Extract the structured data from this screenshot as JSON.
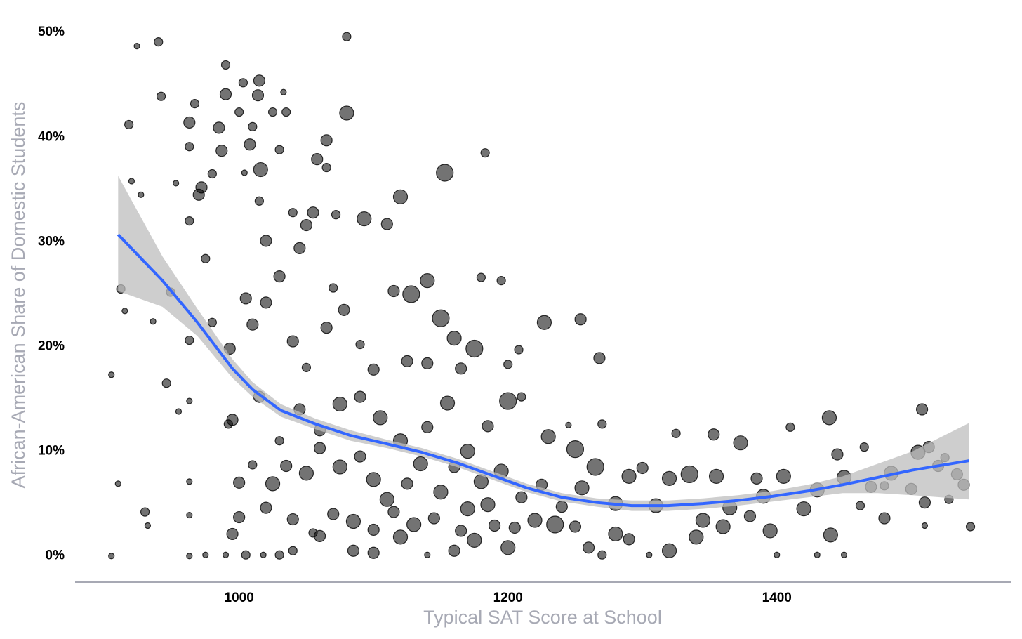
{
  "chart_data": {
    "type": "scatter",
    "x_label": "Typical SAT Score at School",
    "y_label": "African-American Share of Domestic Students",
    "xlim": [
      878,
      1574
    ],
    "ylim": [
      -2.5,
      53.1
    ],
    "xticks": [
      1000,
      1200,
      1400
    ],
    "yticks": [
      {
        "value": 0,
        "label": "0%"
      },
      {
        "value": 10,
        "label": "10%"
      },
      {
        "value": 20,
        "label": "20%"
      },
      {
        "value": 30,
        "label": "30%"
      },
      {
        "value": 40,
        "label": "40%"
      },
      {
        "value": 50,
        "label": "50%"
      }
    ],
    "grid": false,
    "color": "#000000",
    "x": [
      905,
      910,
      905,
      912,
      915,
      918,
      920,
      924,
      927,
      930,
      932,
      936,
      940,
      942,
      946,
      949,
      953,
      955,
      963,
      963,
      963,
      963,
      963,
      963,
      963,
      963,
      967,
      970,
      972,
      975,
      980,
      980,
      985,
      987,
      990,
      990,
      992,
      995,
      993,
      995,
      1000,
      1003,
      1004,
      1008,
      1010,
      1015,
      1014,
      1016,
      1015,
      1020,
      1025,
      1030,
      1033,
      1035,
      1040,
      1045,
      1050,
      1055,
      1058,
      1065,
      1065,
      1072,
      1080,
      1080,
      1093,
      1110,
      1120,
      1153,
      1183,
      1180,
      1195,
      1227,
      1254,
      1268,
      1208,
      1140,
      1128,
      1150,
      1115,
      1070,
      1065,
      1078,
      1030,
      1020,
      1005,
      1010,
      1040,
      1090,
      1100,
      1125,
      1160,
      1175,
      1200,
      1165,
      1200,
      1210,
      1230,
      1250,
      1270,
      1245,
      1265,
      1290,
      1300,
      1320,
      1335,
      1325,
      1353,
      1373,
      1385,
      1390,
      1410,
      1405,
      1420,
      1439,
      1445,
      1450,
      1465,
      1470,
      1485,
      1500,
      1508,
      1505,
      1513,
      1520,
      1525,
      1534,
      1539,
      1544,
      1510,
      1528,
      1510,
      1480,
      1462,
      1450,
      1430,
      1440,
      1400,
      1395,
      1360,
      1340,
      1320,
      1305,
      1290,
      1270,
      1260,
      1235,
      1220,
      1200,
      1190,
      1175,
      1160,
      1140,
      1120,
      1100,
      1085,
      1060,
      1040,
      1030,
      1018,
      1005,
      990,
      975,
      1000,
      1025,
      1035,
      1050,
      1060,
      1075,
      1090,
      1100,
      1110,
      1125,
      1135,
      1150,
      1160,
      1170,
      1180,
      1195,
      1210,
      1225,
      1240,
      1255,
      1280,
      1310,
      1345,
      1365,
      1045,
      1060,
      1075,
      1090,
      1105,
      1120,
      1140,
      1155,
      1170,
      1185,
      1030,
      1015,
      1010,
      1000,
      1020,
      1040,
      1055,
      1070,
      1085,
      1100,
      1115,
      1130,
      1145,
      1165,
      1185,
      1205,
      1250,
      1280,
      1355,
      1380,
      1430,
      1480,
      1140,
      1050
    ],
    "values": [
      17.3,
      6.9,
      0,
      25.5,
      23.4,
      41.2,
      35.8,
      48.7,
      34.5,
      4.2,
      2.9,
      22.4,
      49.1,
      43.9,
      16.5,
      25.2,
      35.6,
      13.8,
      41.4,
      39.1,
      32.0,
      20.6,
      14.8,
      7.1,
      3.9,
      0,
      43.2,
      34.5,
      35.2,
      28.4,
      36.5,
      22.3,
      40.9,
      38.7,
      46.9,
      44.1,
      12.6,
      13.0,
      19.8,
      2.1,
      42.4,
      45.2,
      36.6,
      39.3,
      41.0,
      45.4,
      44.0,
      36.9,
      33.9,
      30.1,
      42.4,
      38.8,
      44.3,
      42.4,
      32.8,
      29.4,
      31.6,
      32.8,
      37.9,
      39.7,
      37.1,
      32.6,
      42.3,
      49.6,
      32.2,
      31.7,
      34.3,
      36.6,
      38.5,
      26.6,
      26.3,
      22.3,
      22.6,
      18.9,
      19.7,
      26.3,
      25.0,
      22.7,
      25.3,
      25.6,
      21.8,
      23.5,
      26.7,
      24.2,
      24.6,
      22.1,
      20.5,
      20.2,
      17.8,
      18.6,
      20.8,
      19.8,
      18.3,
      17.9,
      14.8,
      15.2,
      11.4,
      10.2,
      12.6,
      12.5,
      8.5,
      7.6,
      8.4,
      7.4,
      7.8,
      11.7,
      11.6,
      10.8,
      7.4,
      5.7,
      12.3,
      7.6,
      4.5,
      13.2,
      9.7,
      7.5,
      10.4,
      6.6,
      7.9,
      6.4,
      14.0,
      9.9,
      10.4,
      8.6,
      9.4,
      7.8,
      6.8,
      2.8,
      5.1,
      5.4,
      2.9,
      3.6,
      4.8,
      0.1,
      0.1,
      2.0,
      0.1,
      2.4,
      2.8,
      1.8,
      0.5,
      0.1,
      1.6,
      0.1,
      0.8,
      3.0,
      3.4,
      0.8,
      2.9,
      1.5,
      0.5,
      0.1,
      1.8,
      0.3,
      0.5,
      1.9,
      0.5,
      0.1,
      0.1,
      0.1,
      0.1,
      0.1,
      7.0,
      6.9,
      8.6,
      7.9,
      10.3,
      8.5,
      9.5,
      7.3,
      5.4,
      6.9,
      8.8,
      6.1,
      8.5,
      4.5,
      7.1,
      8.1,
      5.6,
      6.8,
      4.7,
      6.5,
      5.0,
      4.8,
      3.4,
      4.6,
      14.0,
      12.0,
      14.5,
      15.2,
      13.2,
      11.0,
      12.3,
      14.6,
      10.0,
      12.4,
      11.0,
      15.2,
      8.7,
      3.7,
      4.6,
      3.5,
      2.2,
      4.0,
      3.3,
      2.5,
      4.2,
      3.0,
      3.6,
      2.4,
      4.9,
      2.7,
      2.8,
      2.1,
      7.6,
      3.8,
      6.3,
      6.7,
      18.4,
      18.0
    ],
    "sizes": [
      1,
      1,
      1,
      2,
      1,
      2,
      1,
      1,
      1,
      2,
      1,
      1,
      2,
      2,
      2,
      2,
      1,
      1,
      3,
      2,
      2,
      2,
      1,
      1,
      1,
      1,
      2,
      3,
      3,
      2,
      2,
      2,
      3,
      3,
      2,
      3,
      2,
      3,
      3,
      3,
      2,
      2,
      1,
      3,
      2,
      3,
      3,
      4,
      2,
      3,
      2,
      2,
      1,
      2,
      2,
      3,
      3,
      3,
      3,
      3,
      2,
      2,
      4,
      2,
      4,
      3,
      4,
      5,
      2,
      2,
      2,
      4,
      3,
      3,
      2,
      4,
      5,
      5,
      3,
      2,
      3,
      3,
      3,
      3,
      3,
      3,
      3,
      2,
      3,
      3,
      4,
      5,
      2,
      3,
      5,
      2,
      4,
      5,
      2,
      1,
      5,
      4,
      3,
      4,
      5,
      2,
      3,
      4,
      3,
      4,
      2,
      4,
      4,
      4,
      3,
      4,
      2,
      3,
      4,
      3,
      3,
      4,
      3,
      3,
      2,
      3,
      3,
      2,
      3,
      2,
      1,
      3,
      2,
      1,
      1,
      4,
      1,
      4,
      4,
      4,
      4,
      1,
      3,
      2,
      3,
      5,
      4,
      4,
      3,
      4,
      3,
      1,
      4,
      3,
      3,
      3,
      2,
      2,
      1,
      2,
      1,
      1,
      3,
      4,
      3,
      4,
      3,
      4,
      3,
      4,
      4,
      3,
      4,
      4,
      3,
      4,
      4,
      4,
      3,
      3,
      3,
      4,
      4,
      4,
      4,
      4,
      3,
      3,
      4,
      3,
      4,
      4,
      3,
      4,
      4,
      3,
      2,
      3,
      2,
      3,
      3,
      3,
      2,
      3,
      4,
      3,
      3,
      4,
      3,
      3,
      4,
      3,
      3,
      4,
      4,
      3,
      4,
      2,
      3,
      2
    ],
    "fit": {
      "color": "#3366ff",
      "band_color": "#bdbdbd",
      "x": [
        910,
        943,
        969,
        995,
        1010,
        1031,
        1057,
        1083,
        1110,
        1136,
        1162,
        1188,
        1214,
        1240,
        1266,
        1292,
        1319,
        1345,
        1371,
        1397,
        1423,
        1449,
        1475,
        1501,
        1543
      ],
      "values": [
        30.7,
        26.3,
        22.3,
        17.9,
        15.9,
        13.9,
        12.6,
        11.5,
        10.7,
        9.9,
        8.9,
        7.7,
        6.5,
        5.6,
        5.1,
        4.8,
        4.8,
        5.0,
        5.3,
        5.7,
        6.2,
        6.8,
        7.5,
        8.2,
        9.1
      ],
      "lower": [
        25.3,
        23.8,
        21.0,
        17.0,
        15.2,
        13.3,
        12.1,
        11.0,
        10.3,
        9.5,
        8.5,
        7.3,
        6.1,
        5.2,
        4.7,
        4.3,
        4.3,
        4.5,
        4.8,
        5.2,
        5.6,
        6.0,
        6.0,
        5.8,
        5.4
      ],
      "upper": [
        36.3,
        28.6,
        23.6,
        18.8,
        16.6,
        14.5,
        13.1,
        12.0,
        11.1,
        10.3,
        9.3,
        8.1,
        6.9,
        6.0,
        5.5,
        5.3,
        5.3,
        5.5,
        5.8,
        6.2,
        6.8,
        7.6,
        8.8,
        10.0,
        12.7
      ]
    }
  }
}
